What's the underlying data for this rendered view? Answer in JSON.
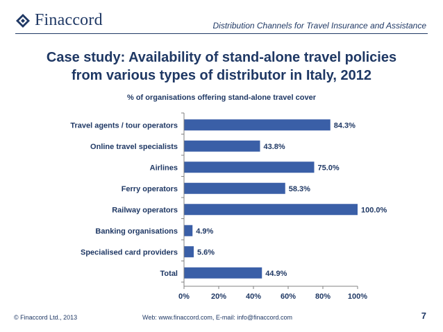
{
  "header": {
    "logo_text": "Finaccord",
    "doc_title": "Distribution Channels for Travel Insurance and Assistance"
  },
  "slide": {
    "title_line1": "Case study: Availability of stand-alone travel policies",
    "title_line2": "from various types of distributor in Italy, 2012"
  },
  "chart_data": {
    "type": "bar",
    "orientation": "horizontal",
    "title": "% of organisations offering stand-alone travel cover",
    "categories": [
      "Travel agents / tour operators",
      "Online travel specialists",
      "Airlines",
      "Ferry operators",
      "Railway operators",
      "Banking organisations",
      "Specialised card providers",
      "Total"
    ],
    "values": [
      84.3,
      43.8,
      75.0,
      58.3,
      100.0,
      4.9,
      5.6,
      44.9
    ],
    "value_labels": [
      "84.3%",
      "43.8%",
      "75.0%",
      "58.3%",
      "100.0%",
      "4.9%",
      "5.6%",
      "44.9%"
    ],
    "x_ticks": [
      "0%",
      "20%",
      "40%",
      "60%",
      "80%",
      "100%"
    ],
    "xlim": [
      0,
      100
    ],
    "grid": false,
    "bar_color": "#3A5FA7"
  },
  "footer": {
    "copyright": "© Finaccord Ltd., 2013",
    "contact": "Web: www.finaccord.com, E-mail: info@finaccord.com",
    "page_number": "7"
  }
}
